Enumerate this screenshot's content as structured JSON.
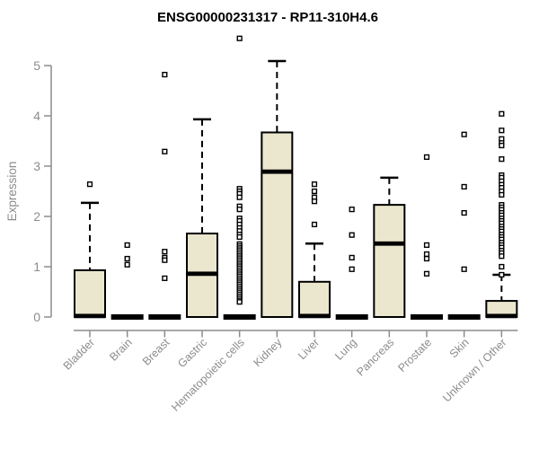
{
  "chart_data": {
    "type": "boxplot",
    "title": "ENSG00000231317 - RP11-310H4.6",
    "ylabel": "Expression",
    "xlabel": "",
    "ylim": [
      0,
      5
    ],
    "yticks": [
      0,
      1,
      2,
      3,
      4,
      5
    ],
    "grid": false,
    "legend": "none",
    "colors": {
      "box_fill": "#EBE6CE",
      "box_stroke": "#000000",
      "median": "#000000",
      "axis": "#8C8C8C",
      "title": "#000000",
      "outlier_fill": "#FFFFFF"
    },
    "categories": [
      "Bladder",
      "Brain",
      "Breast",
      "Gastric",
      "Hematopoietic cells",
      "Kidney",
      "Liver",
      "Lung",
      "Pancreas",
      "Prostate",
      "Skin",
      "Unknown / Other"
    ],
    "series": [
      {
        "category": "Bladder",
        "q1": 0,
        "median": 0.02,
        "q3": 0.93,
        "whisker_low": 0,
        "whisker_high": 2.27,
        "outliers": [
          2.64
        ]
      },
      {
        "category": "Brain",
        "q1": 0,
        "median": 0,
        "q3": 0,
        "whisker_low": 0,
        "whisker_high": 0,
        "outliers": [
          1.43,
          1.16,
          1.04
        ]
      },
      {
        "category": "Breast",
        "q1": 0,
        "median": 0,
        "q3": 0,
        "whisker_low": 0,
        "whisker_high": 0,
        "outliers": [
          4.82,
          3.29,
          1.3,
          1.18,
          1.13,
          0.77
        ]
      },
      {
        "category": "Gastric",
        "q1": 0,
        "median": 0.86,
        "q3": 1.66,
        "whisker_low": 0,
        "whisker_high": 3.93,
        "outliers": []
      },
      {
        "category": "Hematopoietic cells",
        "q1": 0,
        "median": 0,
        "q3": 0,
        "whisker_low": 0,
        "whisker_high": 0,
        "outliers": [
          5.54,
          2.55,
          2.5,
          2.45,
          2.38,
          2.2,
          2.14,
          1.96,
          1.91,
          1.84,
          1.77,
          1.71,
          1.64,
          1.59,
          1.45,
          1.41,
          1.37,
          1.33,
          1.29,
          1.25,
          1.21,
          1.17,
          1.13,
          1.09,
          1.05,
          1.01,
          0.97,
          0.93,
          0.89,
          0.85,
          0.81,
          0.77,
          0.73,
          0.69,
          0.65,
          0.61,
          0.57,
          0.53,
          0.49,
          0.45,
          0.41,
          0.37,
          0.33,
          0.3
        ]
      },
      {
        "category": "Kidney",
        "q1": 0,
        "median": 2.89,
        "q3": 3.67,
        "whisker_low": 0,
        "whisker_high": 5.09,
        "outliers": []
      },
      {
        "category": "Liver",
        "q1": 0,
        "median": 0.02,
        "q3": 0.7,
        "whisker_low": 0,
        "whisker_high": 1.46,
        "outliers": [
          2.64,
          2.5,
          2.38,
          2.3,
          1.84
        ]
      },
      {
        "category": "Lung",
        "q1": 0,
        "median": 0,
        "q3": 0,
        "whisker_low": 0,
        "whisker_high": 0,
        "outliers": [
          2.14,
          1.63,
          1.18,
          0.95
        ]
      },
      {
        "category": "Pancreas",
        "q1": 0,
        "median": 1.46,
        "q3": 2.23,
        "whisker_low": 0,
        "whisker_high": 2.77,
        "outliers": []
      },
      {
        "category": "Prostate",
        "q1": 0,
        "median": 0,
        "q3": 0,
        "whisker_low": 0,
        "whisker_high": 0,
        "outliers": [
          3.18,
          1.43,
          1.25,
          1.16,
          0.86
        ]
      },
      {
        "category": "Skin",
        "q1": 0,
        "median": 0,
        "q3": 0,
        "whisker_low": 0,
        "whisker_high": 0,
        "outliers": [
          3.63,
          2.59,
          2.07,
          0.95
        ]
      },
      {
        "category": "Unknown / Other",
        "q1": 0,
        "median": 0.02,
        "q3": 0.32,
        "whisker_low": 0,
        "whisker_high": 0.84,
        "outliers": [
          4.04,
          3.71,
          3.54,
          3.46,
          3.41,
          3.14,
          2.82,
          2.77,
          2.7,
          2.63,
          2.57,
          2.5,
          2.43,
          2.23,
          2.18,
          2.13,
          2.07,
          2.02,
          1.96,
          1.91,
          1.86,
          1.8,
          1.75,
          1.7,
          1.64,
          1.59,
          1.54,
          1.48,
          1.43,
          1.38,
          1.32,
          1.27,
          1.21,
          1.0,
          0.84
        ]
      }
    ]
  }
}
